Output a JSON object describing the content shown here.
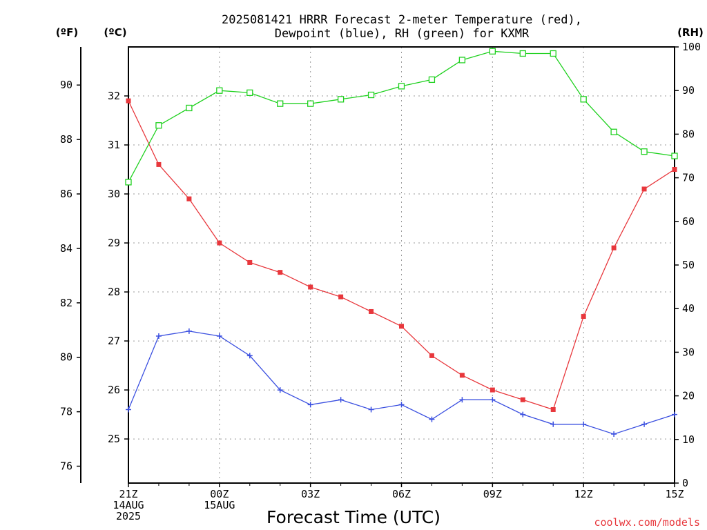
{
  "chart_data": {
    "type": "line",
    "title_line1": "2025081421 HRRR Forecast 2-meter Temperature (red),",
    "title_line2": "Dewpoint (blue), RH (green) for KXMR",
    "xlabel": "Forecast Time (UTC)",
    "credit": "coolwx.com/models",
    "unit_left_f": "(ºF)",
    "unit_left_c": "(ºC)",
    "unit_right": "(RH)",
    "x": [
      "21Z",
      "22Z",
      "23Z",
      "00Z",
      "01Z",
      "02Z",
      "03Z",
      "04Z",
      "05Z",
      "06Z",
      "07Z",
      "08Z",
      "09Z",
      "10Z",
      "11Z",
      "12Z",
      "13Z",
      "14Z",
      "15Z"
    ],
    "x_ticks": [
      {
        "index": 0,
        "lines": [
          "21Z",
          "14AUG",
          "2025"
        ]
      },
      {
        "index": 3,
        "lines": [
          "00Z",
          "15AUG"
        ]
      },
      {
        "index": 6,
        "lines": [
          "03Z"
        ]
      },
      {
        "index": 9,
        "lines": [
          "06Z"
        ]
      },
      {
        "index": 12,
        "lines": [
          "09Z"
        ]
      },
      {
        "index": 15,
        "lines": [
          "12Z"
        ]
      },
      {
        "index": 18,
        "lines": [
          "15Z"
        ]
      }
    ],
    "axes": {
      "celsius": {
        "min": 24.1,
        "max": 33.0,
        "ticks": [
          "25",
          "26",
          "27",
          "28",
          "29",
          "30",
          "31",
          "32"
        ]
      },
      "fahrenheit": {
        "ticks": [
          "76",
          "78",
          "80",
          "82",
          "84",
          "86",
          "88",
          "90"
        ]
      },
      "rh": {
        "min": 0,
        "max": 100,
        "ticks": [
          "0",
          "10",
          "20",
          "30",
          "40",
          "50",
          "60",
          "70",
          "80",
          "90",
          "100"
        ]
      }
    },
    "grid": true,
    "series": [
      {
        "name": "Temperature",
        "unit": "C",
        "axis": "celsius",
        "color": "#e8373c",
        "marker": "filled-square",
        "values": [
          31.9,
          30.6,
          29.9,
          29.0,
          28.6,
          28.4,
          28.1,
          27.9,
          27.6,
          27.3,
          26.7,
          26.3,
          26.0,
          25.8,
          25.6,
          27.5,
          28.9,
          30.1,
          30.5
        ]
      },
      {
        "name": "Dewpoint",
        "unit": "C",
        "axis": "celsius",
        "color": "#3a4fe0",
        "marker": "plus",
        "values": [
          25.6,
          27.1,
          27.2,
          27.1,
          26.7,
          26.0,
          25.7,
          25.8,
          25.6,
          25.7,
          25.4,
          25.8,
          25.8,
          25.5,
          25.3,
          25.3,
          25.1,
          25.3,
          25.5
        ]
      },
      {
        "name": "RH",
        "unit": "%",
        "axis": "rh",
        "color": "#1fd11f",
        "marker": "open-square",
        "values": [
          69,
          82,
          86,
          90,
          89.5,
          87,
          87,
          88,
          89,
          91,
          92.5,
          97,
          99,
          98.5,
          98.5,
          88,
          80.5,
          76,
          75
        ]
      }
    ]
  }
}
